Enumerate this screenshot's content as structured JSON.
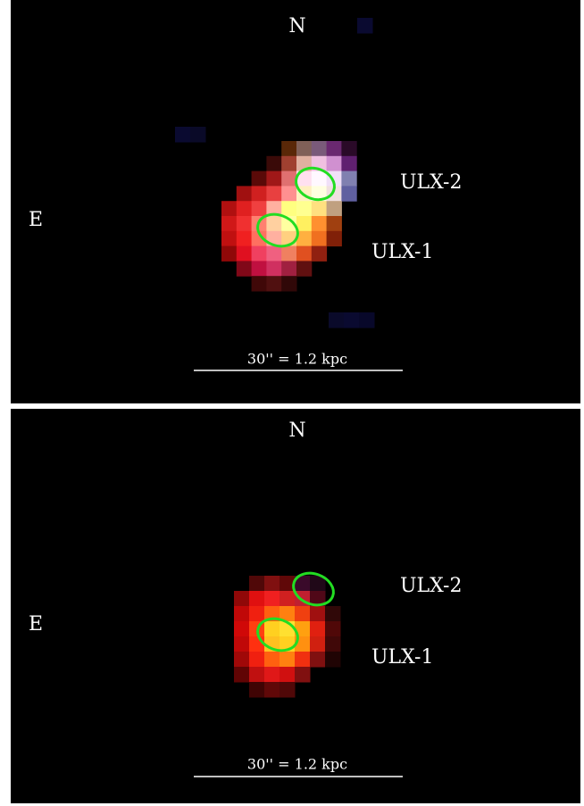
{
  "panels": [
    {
      "north": "N",
      "east": "E",
      "ulx2": "ULX-2",
      "ulx1": "ULX-1",
      "scale": "30'' = 1.2 kpc"
    },
    {
      "north": "N",
      "east": "E",
      "ulx2": "ULX-2",
      "ulx1": "ULX-1",
      "scale": "30'' = 1.2 kpc"
    }
  ]
}
